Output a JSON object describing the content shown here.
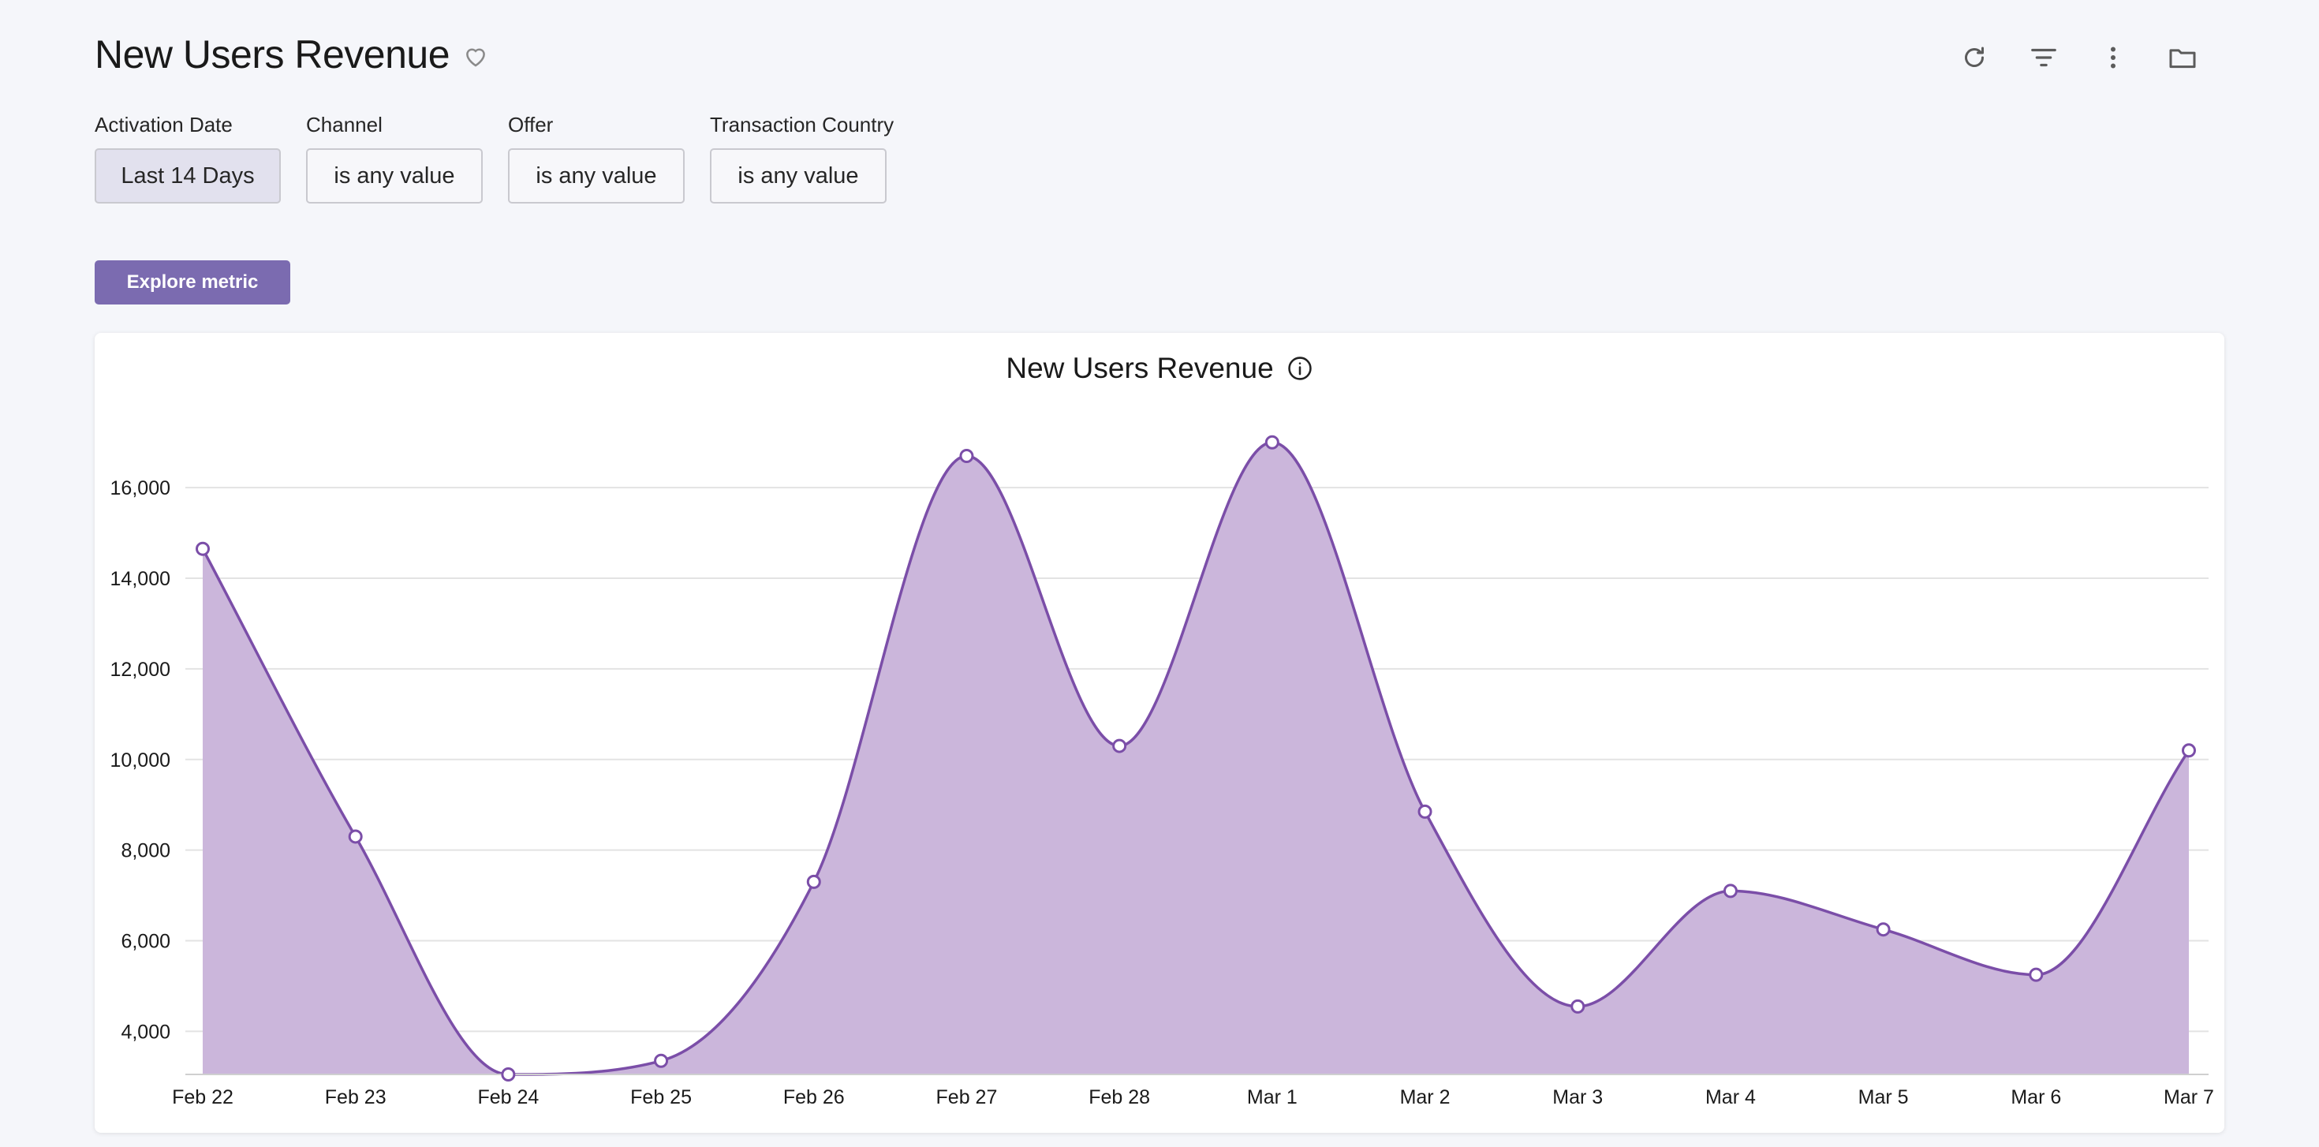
{
  "page": {
    "title": "New Users Revenue"
  },
  "icons": {
    "favorite": "heart-outline-icon",
    "refresh": "refresh-icon",
    "filter": "filter-icon",
    "more": "more-vertical-icon",
    "folder": "folder-icon",
    "info": "info-icon"
  },
  "filters": [
    {
      "label": "Activation Date",
      "value": "Last 14 Days"
    },
    {
      "label": "Channel",
      "value": "is any value"
    },
    {
      "label": "Offer",
      "value": "is any value"
    },
    {
      "label": "Transaction Country",
      "value": "is any value"
    }
  ],
  "actions": {
    "explore_label": "Explore metric"
  },
  "colors": {
    "accent": "#7b6bb0",
    "line": "#7b4ea8",
    "fill": "#cbb6db"
  },
  "chart_data": {
    "type": "area",
    "title": "New Users Revenue",
    "xlabel": "",
    "ylabel": "",
    "categories": [
      "Feb 22",
      "Feb 23",
      "Feb 24",
      "Feb 25",
      "Feb 26",
      "Feb 27",
      "Feb 28",
      "Mar 1",
      "Mar 2",
      "Mar 3",
      "Mar 4",
      "Mar 5",
      "Mar 6",
      "Mar 7"
    ],
    "series": [
      {
        "name": "New Users Revenue",
        "values": [
          14650,
          8300,
          3050,
          3350,
          7300,
          16700,
          10300,
          17000,
          8850,
          4550,
          7100,
          6250,
          5250,
          10200
        ]
      }
    ],
    "ylim": [
      3050,
      17500
    ],
    "yticks": [
      4000,
      6000,
      8000,
      10000,
      12000,
      14000,
      16000
    ],
    "ytick_labels": [
      "4,000",
      "6,000",
      "8,000",
      "10,000",
      "12,000",
      "14,000",
      "16,000"
    ],
    "grid": true
  }
}
